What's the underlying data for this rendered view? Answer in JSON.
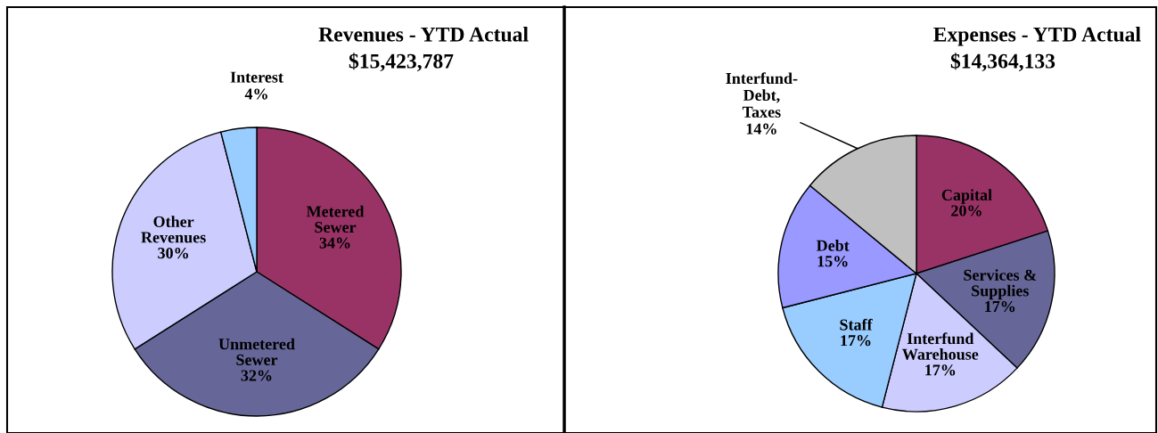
{
  "chart_data": [
    {
      "type": "pie",
      "title": "Revenues - YTD Actual",
      "subtitle": "$15,423,787",
      "categories": [
        "Metered\nSewer",
        "Unmetered\nSewer",
        "Other\nRevenues",
        "Interest"
      ],
      "values": [
        34,
        32,
        30,
        4
      ],
      "colors": [
        "#993366",
        "#666699",
        "#ccccff",
        "#99ccff"
      ],
      "value_labels": [
        "34%",
        "32%",
        "30%",
        "4%"
      ]
    },
    {
      "type": "pie",
      "title": "Expenses - YTD Actual",
      "subtitle": "$14,364,133",
      "categories": [
        "Capital",
        "Services &\nSupplies",
        "Interfund\nWarehouse",
        "Staff",
        "Debt",
        "Interfund-\nDebt,\nTaxes"
      ],
      "values": [
        20,
        17,
        17,
        17,
        15,
        14
      ],
      "colors": [
        "#993366",
        "#666699",
        "#ccccff",
        "#99ccff",
        "#9999ff",
        "#c0c0c0"
      ],
      "value_labels": [
        "20%",
        "17%",
        "17%",
        "17%",
        "15%",
        "14%"
      ]
    }
  ]
}
